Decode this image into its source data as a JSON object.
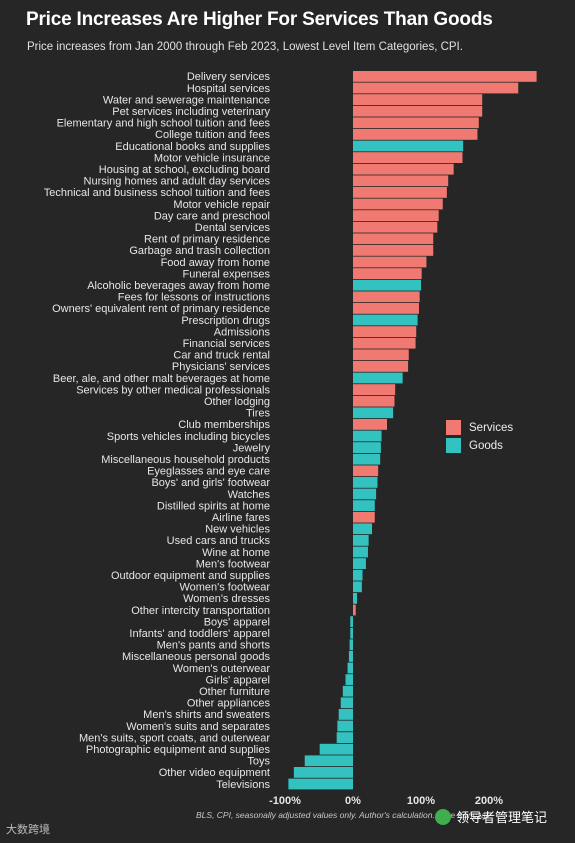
{
  "title": "Price Increases Are Higher For Services Than Goods",
  "subtitle": "Price increases from Jan 2000 through Feb 2023, Lowest Level Item Categories, CPI.",
  "source": "BLS, CPI, seasonally adjusted values only. Author's calculation. Mike Konczal",
  "logo_text": "大数跨境",
  "watermark_text": "领导者管理笔记",
  "colors": {
    "Services": "#f07a71",
    "Goods": "#33c2c0",
    "background": "#262626"
  },
  "chart_data": {
    "type": "bar",
    "orientation": "horizontal",
    "title": "Price Increases Are Higher For Services Than Goods",
    "subtitle": "Price increases from Jan 2000 through Feb 2023, Lowest Level Item Categories, CPI.",
    "xlim": [
      -100,
      270
    ],
    "x_ticks": [
      -100,
      0,
      100,
      200
    ],
    "x_tick_labels": [
      "-100%",
      "0%",
      "100%",
      "200%"
    ],
    "legend": {
      "position": "right",
      "entries": [
        "Services",
        "Goods"
      ]
    },
    "categories": [
      "Delivery services",
      "Hospital services",
      "Water and sewerage maintenance",
      "Pet services including veterinary",
      "Elementary and high school tuition and fees",
      "College tuition and fees",
      "Educational books and supplies",
      "Motor vehicle insurance",
      "Housing at school, excluding board",
      "Nursing homes and adult day services",
      "Technical and business school tuition and fees",
      "Motor vehicle repair",
      "Day care and preschool",
      "Dental services",
      "Rent of primary residence",
      "Garbage and trash collection",
      "Food away from home",
      "Funeral expenses",
      "Alcoholic beverages away from home",
      "Fees for lessons or instructions",
      "Owners' equivalent rent of primary residence",
      "Prescription drugs",
      "Admissions",
      "Financial services",
      "Car and truck rental",
      "Physicians' services",
      "Beer, ale, and other malt beverages at home",
      "Services by other medical professionals",
      "Other lodging",
      "Tires",
      "Club memberships",
      "Sports vehicles including bicycles",
      "Jewelry",
      "Miscellaneous household products",
      "Eyeglasses and eye care",
      "Boys' and girls' footwear",
      "Watches",
      "Distilled spirits at home",
      "Airline fares",
      "New vehicles",
      "Used cars and trucks",
      "Wine at home",
      "Men's footwear",
      "Outdoor equipment and supplies",
      "Women's footwear",
      "Women's dresses",
      "Other intercity transportation",
      "Boys' apparel",
      "Infants' and toddlers' apparel",
      "Men's pants and shorts",
      "Miscellaneous personal goods",
      "Women's outerwear",
      "Girls' apparel",
      "Other furniture",
      "Other appliances",
      "Men's shirts and sweaters",
      "Women's suits and separates",
      "Men's suits, sport coats, and outerwear",
      "Photographic equipment and supplies",
      "Toys",
      "Other video equipment",
      "Televisions"
    ],
    "values": [
      270,
      243,
      190,
      190,
      185,
      183,
      162,
      161,
      148,
      140,
      138,
      132,
      126,
      124,
      118,
      118,
      108,
      101,
      100,
      98,
      97,
      95,
      93,
      92,
      82,
      81,
      73,
      62,
      61,
      59,
      50,
      42,
      41,
      40,
      37,
      36,
      34,
      32,
      32,
      28,
      23,
      22,
      19,
      14,
      13,
      6,
      4,
      -4,
      -4,
      -5,
      -6,
      -8,
      -11,
      -15,
      -18,
      -21,
      -23,
      -24,
      -49,
      -71,
      -87,
      -95
    ],
    "groups": [
      "Services",
      "Services",
      "Services",
      "Services",
      "Services",
      "Services",
      "Goods",
      "Services",
      "Services",
      "Services",
      "Services",
      "Services",
      "Services",
      "Services",
      "Services",
      "Services",
      "Services",
      "Services",
      "Goods",
      "Services",
      "Services",
      "Goods",
      "Services",
      "Services",
      "Services",
      "Services",
      "Goods",
      "Services",
      "Services",
      "Goods",
      "Services",
      "Goods",
      "Goods",
      "Goods",
      "Services",
      "Goods",
      "Goods",
      "Goods",
      "Services",
      "Goods",
      "Goods",
      "Goods",
      "Goods",
      "Goods",
      "Goods",
      "Goods",
      "Services",
      "Goods",
      "Goods",
      "Goods",
      "Goods",
      "Goods",
      "Goods",
      "Goods",
      "Goods",
      "Goods",
      "Goods",
      "Goods",
      "Goods",
      "Goods",
      "Goods",
      "Goods"
    ]
  }
}
